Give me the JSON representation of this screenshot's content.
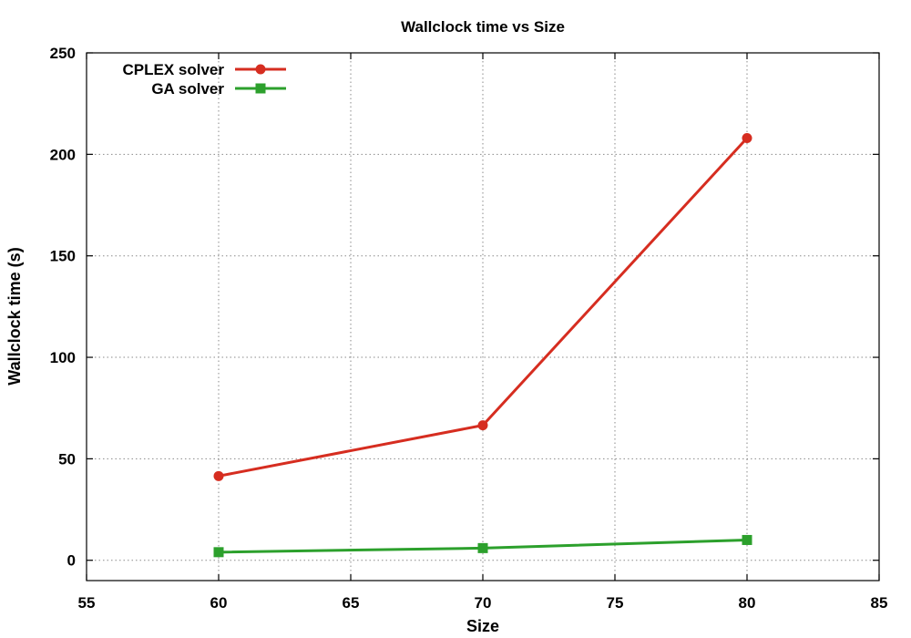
{
  "chart_data": {
    "type": "line",
    "title": "Wallclock time vs Size",
    "xlabel": "Size",
    "ylabel": "Wallclock time (s)",
    "xlim": [
      55,
      85
    ],
    "ylim": [
      -10,
      250
    ],
    "xticks": [
      55,
      60,
      65,
      70,
      75,
      80,
      85
    ],
    "yticks": [
      0,
      50,
      100,
      150,
      200,
      250
    ],
    "grid": true,
    "legend_position": "top-left",
    "series": [
      {
        "name": "CPLEX solver",
        "color": "#d62d20",
        "marker": "circle",
        "x": [
          60,
          70,
          80
        ],
        "y": [
          41.5,
          66.5,
          208
        ]
      },
      {
        "name": "GA solver",
        "color": "#2ca02c",
        "marker": "square",
        "x": [
          60,
          70,
          80
        ],
        "y": [
          4,
          6,
          10
        ]
      }
    ]
  }
}
